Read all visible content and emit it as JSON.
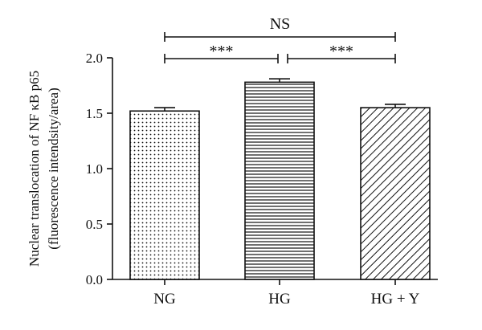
{
  "chart_data": {
    "type": "bar",
    "categories": [
      "NG",
      "HG",
      "HG + Y"
    ],
    "values": [
      1.52,
      1.78,
      1.55
    ],
    "errors": [
      0.03,
      0.03,
      0.03
    ],
    "patterns": [
      "dots",
      "horizontal-lines",
      "diagonal-lines"
    ],
    "ylabel_line1": "Nuclear translocation of NF κB p65",
    "ylabel_line2": "(fluorescence intendsity/area)",
    "xlabel": "",
    "ylim": [
      0,
      2.0
    ],
    "yticks": [
      "0.0",
      "0.5",
      "1.0",
      "1.5",
      "2.0"
    ],
    "grid": false,
    "significance": [
      {
        "from": 0,
        "to": 1,
        "label": "***"
      },
      {
        "from": 1,
        "to": 2,
        "label": "***"
      },
      {
        "from": 0,
        "to": 2,
        "label": "NS"
      }
    ]
  }
}
